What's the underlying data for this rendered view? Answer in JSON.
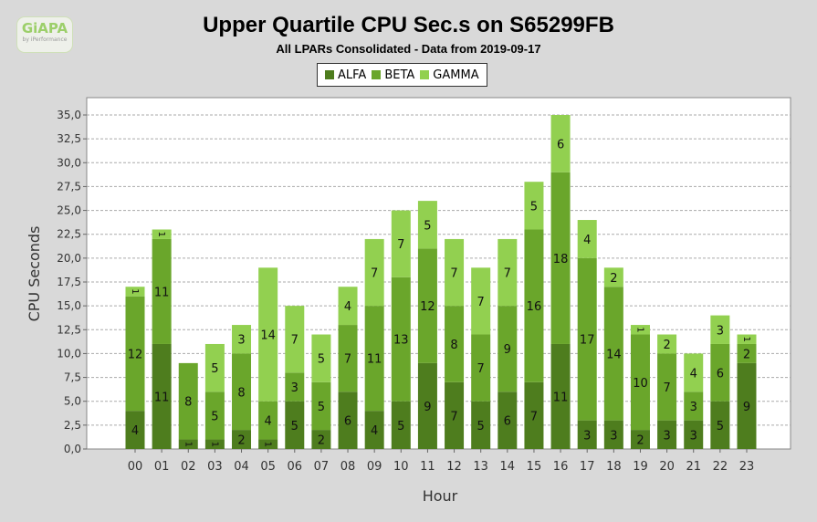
{
  "logo": {
    "text": "GiAPA",
    "sub": "by iPerformance"
  },
  "chart_data": {
    "type": "bar",
    "stacked": true,
    "title": "Upper Quartile CPU Sec.s on S65299FB",
    "subtitle": "All LPARs Consolidated - Data from 2019-09-17",
    "xlabel": "Hour",
    "ylabel": "CPU Seconds",
    "ylim": [
      0,
      36
    ],
    "yticks": [
      "0,0",
      "2,5",
      "5,0",
      "7,5",
      "10,0",
      "12,5",
      "15,0",
      "17,5",
      "20,0",
      "22,5",
      "25,0",
      "27,5",
      "30,0",
      "32,5",
      "35,0"
    ],
    "grid": true,
    "legend_position": "top",
    "categories": [
      "00",
      "01",
      "02",
      "03",
      "04",
      "05",
      "06",
      "07",
      "08",
      "09",
      "10",
      "11",
      "12",
      "13",
      "14",
      "15",
      "16",
      "17",
      "18",
      "19",
      "20",
      "21",
      "22",
      "23"
    ],
    "series": [
      {
        "name": "ALFA",
        "color": "#4e7d1e",
        "values": [
          4,
          11,
          1,
          1,
          2,
          1,
          5,
          2,
          6,
          4,
          5,
          9,
          7,
          5,
          6,
          7,
          11,
          3,
          3,
          2,
          3,
          3,
          5,
          9
        ]
      },
      {
        "name": "BETA",
        "color": "#6aa62b",
        "values": [
          12,
          11,
          8,
          5,
          8,
          4,
          3,
          5,
          7,
          11,
          13,
          12,
          8,
          7,
          9,
          16,
          18,
          17,
          14,
          10,
          7,
          3,
          6,
          2
        ]
      },
      {
        "name": "GAMMA",
        "color": "#92d050",
        "values": [
          1,
          1,
          0,
          5,
          3,
          14,
          7,
          5,
          4,
          7,
          7,
          5,
          7,
          7,
          7,
          5,
          6,
          4,
          2,
          1,
          2,
          4,
          3,
          1
        ]
      }
    ]
  }
}
